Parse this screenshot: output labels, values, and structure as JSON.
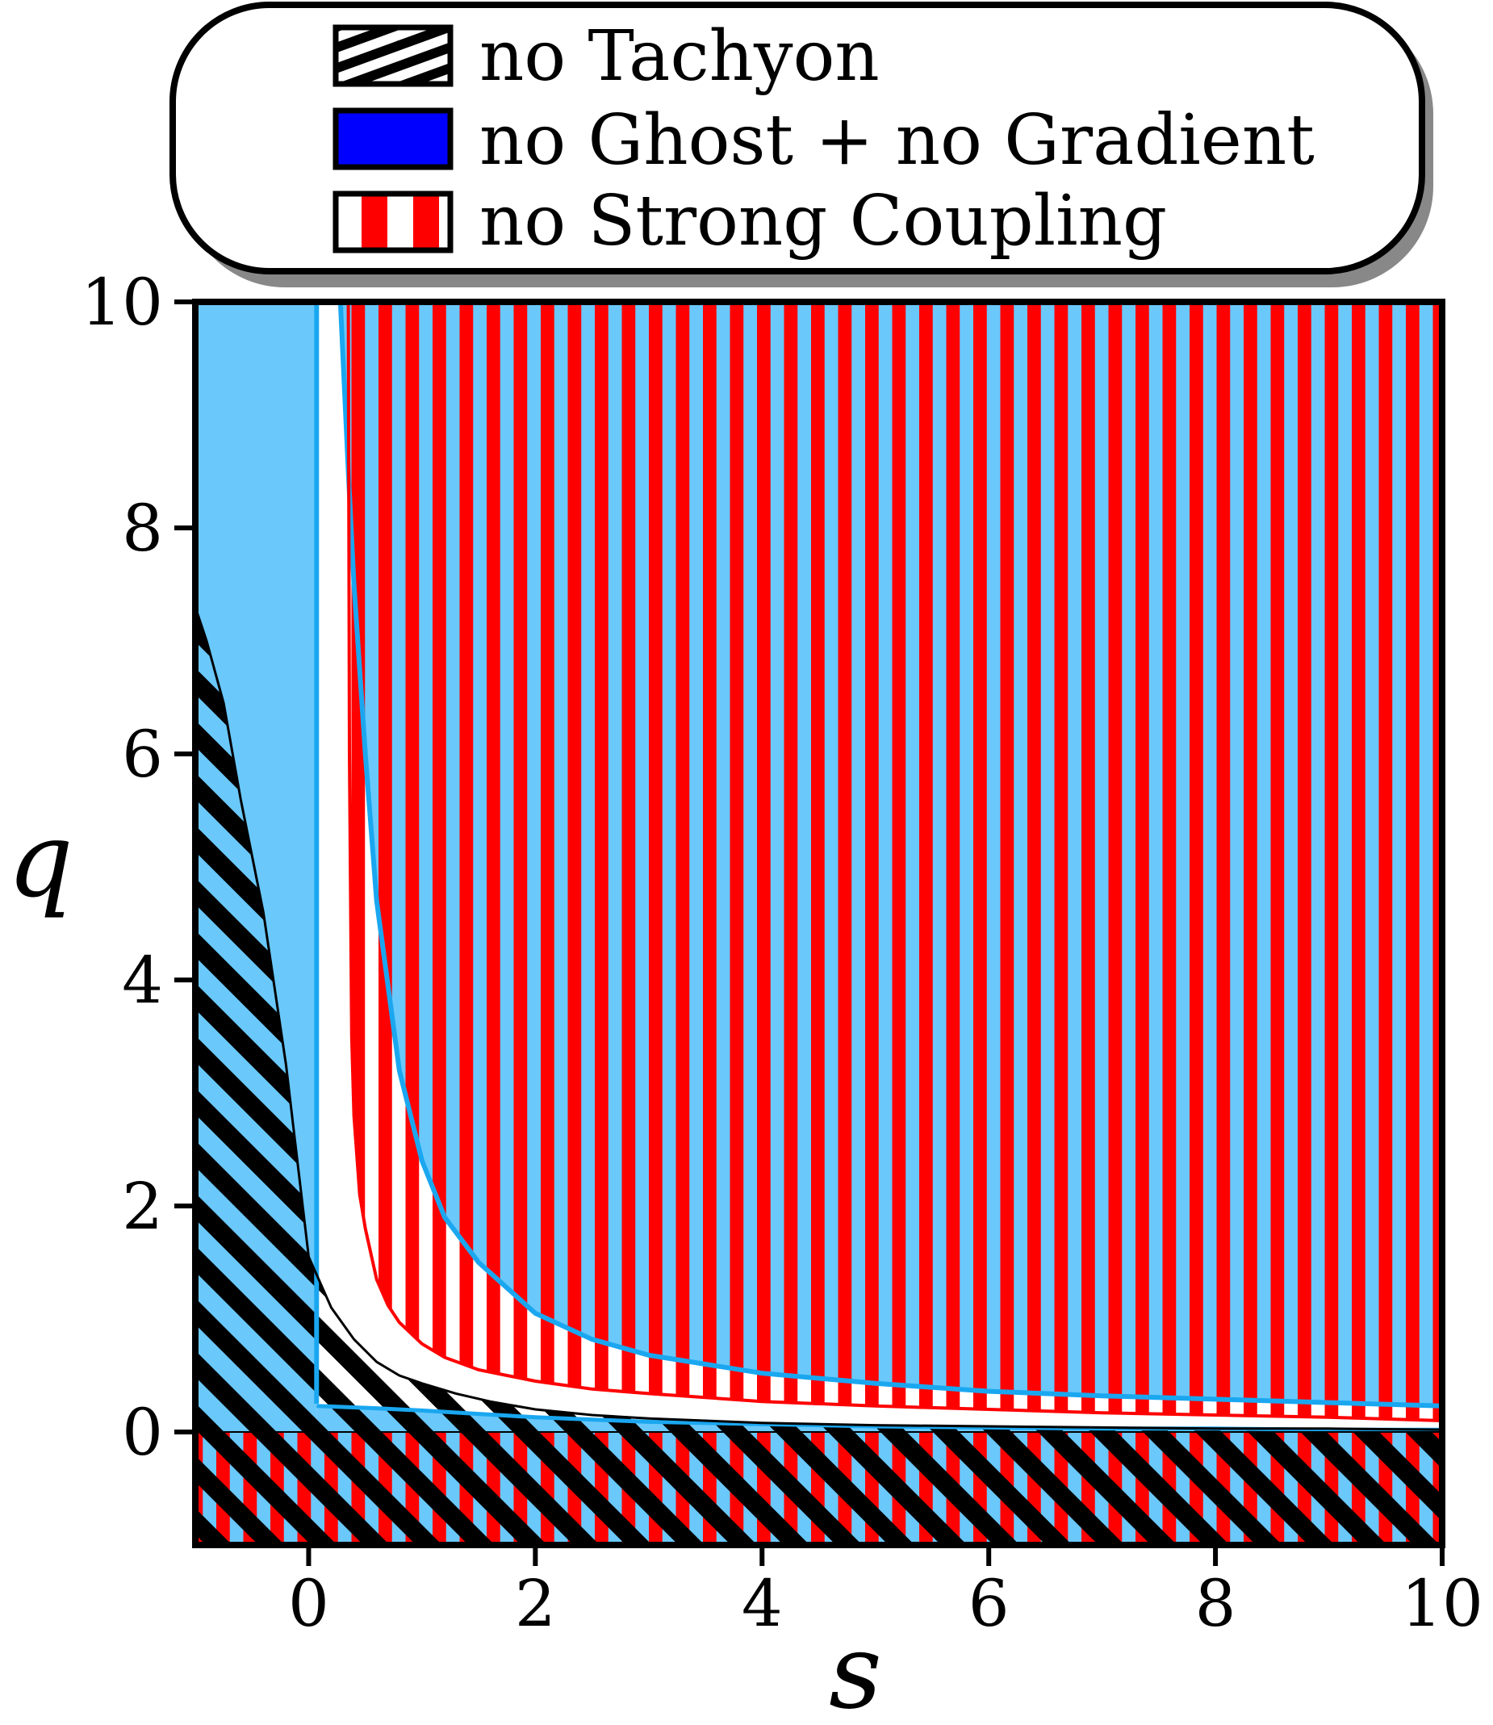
{
  "chart_data": {
    "type": "area",
    "title": "",
    "xlabel": "s",
    "ylabel": "q",
    "xlim": [
      -1,
      10
    ],
    "ylim": [
      -1,
      10
    ],
    "xticks": [
      "0",
      "2",
      "4",
      "6",
      "8",
      "10"
    ],
    "yticks": [
      "0",
      "2",
      "4",
      "6",
      "8",
      "10"
    ],
    "grid": false,
    "legend": {
      "placement": "top-center",
      "entries": [
        {
          "label": "no Tachyon",
          "pattern": "black-white-diagonal-hatch"
        },
        {
          "label": "no Ghost + no Gradient",
          "pattern": "solid-blue"
        },
        {
          "label": "no Strong Coupling",
          "pattern": "red-white-vertical-stripes"
        }
      ]
    },
    "colors": {
      "region_fill": "#6ac8fb",
      "boundary": "#1aa7f0",
      "ghost_legend": "#0000ff",
      "strong_coupling": "#ff0000",
      "tachyon": "#000000"
    },
    "series": [
      {
        "name": "no Tachyon",
        "region": "q below the curve",
        "x": [
          -1,
          -0.9,
          -0.75,
          -0.6,
          -0.4,
          -0.2,
          0,
          0.2,
          0.4,
          0.6,
          0.8,
          1.0,
          1.3,
          1.6,
          2.0,
          2.5,
          3.0,
          4.0,
          5.0,
          6.0,
          7.0,
          8.0,
          9.0,
          10.0
        ],
        "y": [
          7.3,
          7.0,
          6.45,
          5.6,
          4.6,
          3.25,
          1.55,
          1.1,
          0.82,
          0.62,
          0.5,
          0.43,
          0.34,
          0.27,
          0.2,
          0.15,
          0.12,
          0.08,
          0.06,
          0.05,
          0.04,
          0.03,
          0.03,
          0.02
        ]
      },
      {
        "name": "no Ghost + no Gradient",
        "region": "left of s = 0.07 and above q = 0",
        "x": [
          0.07,
          0.07
        ],
        "y": [
          0,
          10
        ]
      },
      {
        "name": "no Ghost + no Gradient",
        "region": "q above the curve",
        "x": [
          0.28,
          0.35,
          0.4,
          0.5,
          0.6,
          0.8,
          1.0,
          1.2,
          1.5,
          2.0,
          2.5,
          3.0,
          3.5,
          4.0,
          5.0,
          6.0,
          7.0,
          8.0,
          9.0,
          10.0
        ],
        "y": [
          10,
          8.5,
          7.5,
          6.0,
          4.7,
          3.2,
          2.4,
          1.9,
          1.5,
          1.05,
          0.82,
          0.68,
          0.6,
          0.52,
          0.43,
          0.36,
          0.32,
          0.29,
          0.26,
          0.23
        ]
      },
      {
        "name": "no Strong Coupling",
        "region": "q above the curve",
        "x": [
          0.35,
          0.36,
          0.38,
          0.4,
          0.45,
          0.5,
          0.6,
          0.7,
          0.8,
          1.0,
          1.2,
          1.5,
          2.0,
          2.5,
          3.0,
          4.0,
          5.0,
          6.0,
          7.0,
          8.0,
          9.0,
          10.0
        ],
        "y": [
          10,
          6.0,
          3.5,
          2.8,
          2.1,
          1.8,
          1.35,
          1.12,
          0.97,
          0.78,
          0.66,
          0.55,
          0.45,
          0.38,
          0.34,
          0.27,
          0.23,
          0.2,
          0.17,
          0.15,
          0.13,
          0.1
        ]
      },
      {
        "name": "no Strong Coupling",
        "region": "q below 0",
        "x": [
          -1,
          10
        ],
        "y": [
          0,
          0
        ]
      }
    ]
  }
}
